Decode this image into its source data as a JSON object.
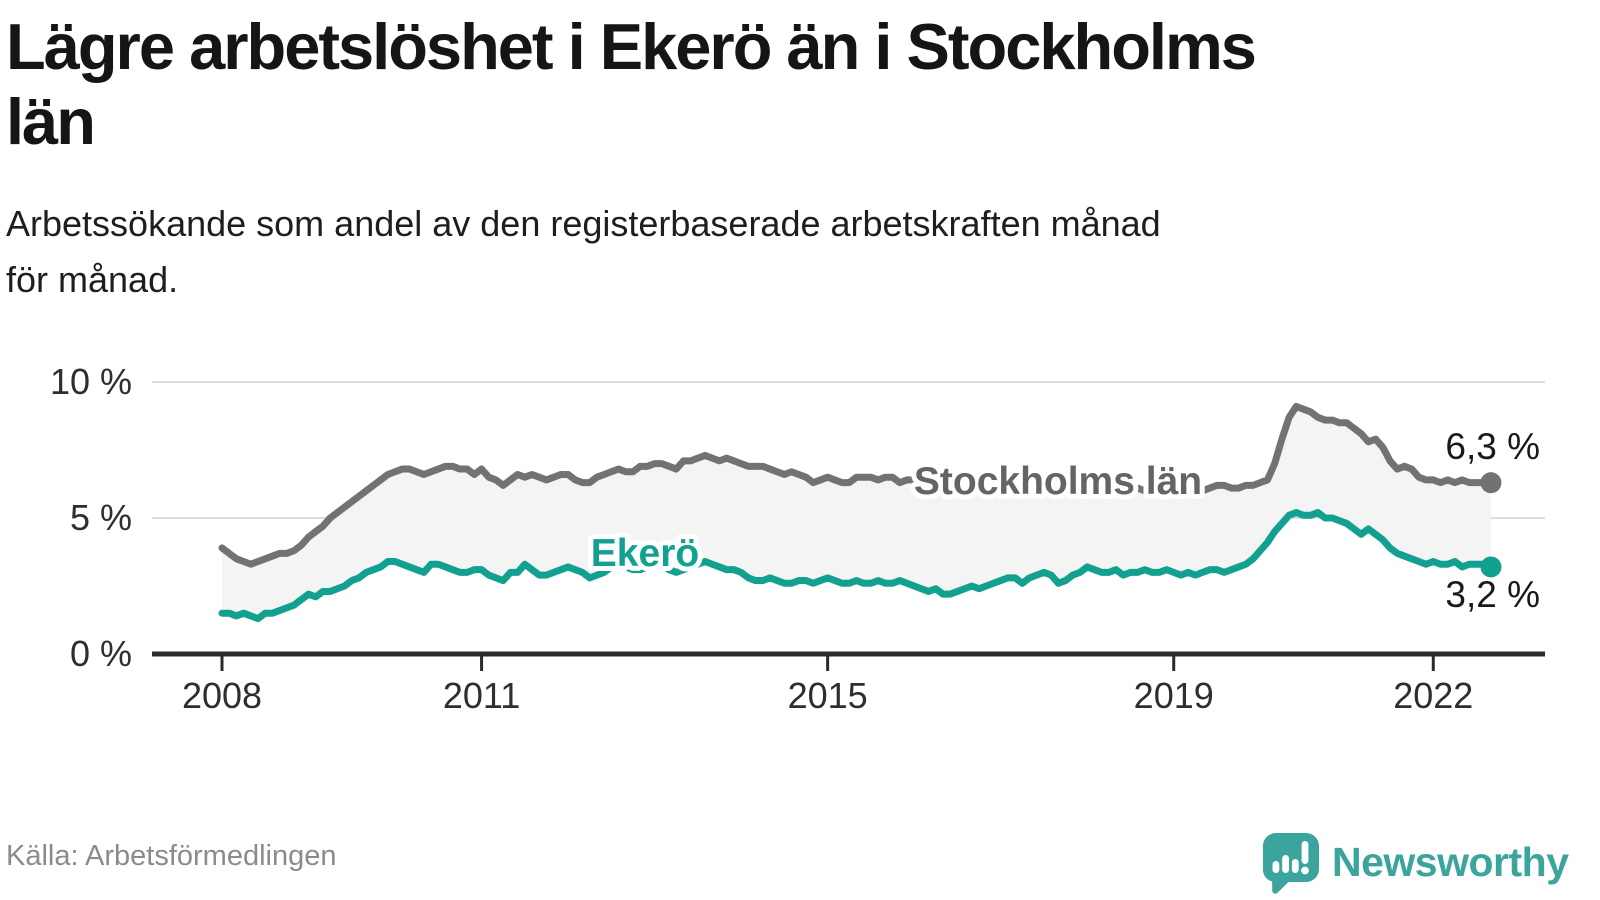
{
  "header": {
    "title_lines": [
      "Lägre arbetslöshet i Ekerö än i Stockholms",
      "län"
    ],
    "subtitle_lines": [
      "Arbetssökande som andel av den registerbaserade arbetskraften månad",
      "för månad."
    ]
  },
  "chart_data": {
    "type": "line",
    "title": "Lägre arbetslöshet i Ekerö än i Stockholms län",
    "subtitle": "Arbetssökande som andel av den registerbaserade arbetskraften månad för månad.",
    "unit": "%",
    "frequency": "monthly",
    "x_start": "2008-01",
    "x_end": "2022-09",
    "ylim": [
      0,
      10.5
    ],
    "grid": "horizontal",
    "legend_position": "inline-labels",
    "y_ticks": [
      {
        "label": "10 %",
        "value": 10
      },
      {
        "label": "5 %",
        "value": 5
      },
      {
        "label": "0 %",
        "value": 0
      }
    ],
    "x_ticks": [
      {
        "label": "2008",
        "month_index": 0
      },
      {
        "label": "2011",
        "month_index": 36
      },
      {
        "label": "2015",
        "month_index": 84
      },
      {
        "label": "2019",
        "month_index": 132
      },
      {
        "label": "2022",
        "month_index": 168
      }
    ],
    "series": [
      {
        "name": "Stockholms län",
        "color": "#727272",
        "label_color": "#646464",
        "end_label": "6,3 %",
        "end_value": 6.3,
        "values": [
          3.9,
          3.7,
          3.5,
          3.4,
          3.3,
          3.4,
          3.5,
          3.6,
          3.7,
          3.7,
          3.8,
          4.0,
          4.3,
          4.5,
          4.7,
          5.0,
          5.2,
          5.4,
          5.6,
          5.8,
          6.0,
          6.2,
          6.4,
          6.6,
          6.7,
          6.8,
          6.8,
          6.7,
          6.6,
          6.7,
          6.8,
          6.9,
          6.9,
          6.8,
          6.8,
          6.6,
          6.8,
          6.5,
          6.4,
          6.2,
          6.4,
          6.6,
          6.5,
          6.6,
          6.5,
          6.4,
          6.5,
          6.6,
          6.6,
          6.4,
          6.3,
          6.3,
          6.5,
          6.6,
          6.7,
          6.8,
          6.7,
          6.7,
          6.9,
          6.9,
          7.0,
          7.0,
          6.9,
          6.8,
          7.1,
          7.1,
          7.2,
          7.3,
          7.2,
          7.1,
          7.2,
          7.1,
          7.0,
          6.9,
          6.9,
          6.9,
          6.8,
          6.7,
          6.6,
          6.7,
          6.6,
          6.5,
          6.3,
          6.4,
          6.5,
          6.4,
          6.3,
          6.3,
          6.5,
          6.5,
          6.5,
          6.4,
          6.5,
          6.5,
          6.3,
          6.4,
          6.4,
          6.5,
          6.4,
          6.3,
          6.2,
          6.2,
          6.3,
          6.4,
          6.3,
          6.2,
          6.2,
          6.2,
          6.2,
          6.3,
          6.2,
          6.1,
          6.0,
          6.1,
          6.2,
          6.3,
          6.2,
          6.1,
          6.1,
          6.1,
          6.1,
          6.1,
          6.0,
          5.9,
          5.9,
          6.0,
          6.1,
          6.1,
          6.0,
          5.9,
          5.9,
          6.0,
          6.0,
          6.1,
          6.0,
          5.9,
          6.0,
          6.1,
          6.2,
          6.2,
          6.1,
          6.1,
          6.2,
          6.2,
          6.3,
          6.4,
          7.0,
          7.9,
          8.7,
          9.1,
          9.0,
          8.9,
          8.7,
          8.6,
          8.6,
          8.5,
          8.5,
          8.3,
          8.1,
          7.8,
          7.9,
          7.6,
          7.1,
          6.8,
          6.9,
          6.8,
          6.5,
          6.4,
          6.4,
          6.3,
          6.4,
          6.3,
          6.4,
          6.3,
          6.3,
          6.3,
          6.3
        ]
      },
      {
        "name": "Ekerö",
        "color": "#12a091",
        "label_color": "#12a091",
        "end_label": "3,2 %",
        "end_value": 3.2,
        "values": [
          1.5,
          1.5,
          1.4,
          1.5,
          1.4,
          1.3,
          1.5,
          1.5,
          1.6,
          1.7,
          1.8,
          2.0,
          2.2,
          2.1,
          2.3,
          2.3,
          2.4,
          2.5,
          2.7,
          2.8,
          3.0,
          3.1,
          3.2,
          3.4,
          3.4,
          3.3,
          3.2,
          3.1,
          3.0,
          3.3,
          3.3,
          3.2,
          3.1,
          3.0,
          3.0,
          3.1,
          3.1,
          2.9,
          2.8,
          2.7,
          3.0,
          3.0,
          3.3,
          3.1,
          2.9,
          2.9,
          3.0,
          3.1,
          3.2,
          3.1,
          3.0,
          2.8,
          2.9,
          3.0,
          3.2,
          3.3,
          3.2,
          3.1,
          3.1,
          3.2,
          3.2,
          3.3,
          3.1,
          3.0,
          3.1,
          3.2,
          3.3,
          3.4,
          3.3,
          3.2,
          3.1,
          3.1,
          3.0,
          2.8,
          2.7,
          2.7,
          2.8,
          2.7,
          2.6,
          2.6,
          2.7,
          2.7,
          2.6,
          2.7,
          2.8,
          2.7,
          2.6,
          2.6,
          2.7,
          2.6,
          2.6,
          2.7,
          2.6,
          2.6,
          2.7,
          2.6,
          2.5,
          2.4,
          2.3,
          2.4,
          2.2,
          2.2,
          2.3,
          2.4,
          2.5,
          2.4,
          2.5,
          2.6,
          2.7,
          2.8,
          2.8,
          2.6,
          2.8,
          2.9,
          3.0,
          2.9,
          2.6,
          2.7,
          2.9,
          3.0,
          3.2,
          3.1,
          3.0,
          3.0,
          3.1,
          2.9,
          3.0,
          3.0,
          3.1,
          3.0,
          3.0,
          3.1,
          3.0,
          2.9,
          3.0,
          2.9,
          3.0,
          3.1,
          3.1,
          3.0,
          3.1,
          3.2,
          3.3,
          3.5,
          3.8,
          4.1,
          4.5,
          4.8,
          5.1,
          5.2,
          5.1,
          5.1,
          5.2,
          5.0,
          5.0,
          4.9,
          4.8,
          4.6,
          4.4,
          4.6,
          4.4,
          4.2,
          3.9,
          3.7,
          3.6,
          3.5,
          3.4,
          3.3,
          3.4,
          3.3,
          3.3,
          3.4,
          3.2,
          3.3,
          3.3,
          3.3,
          3.2
        ]
      }
    ]
  },
  "footer": {
    "source": "Källa: Arbetsförmedlingen",
    "brand": "Newsworthy",
    "brand_color": "#3ba49c"
  }
}
